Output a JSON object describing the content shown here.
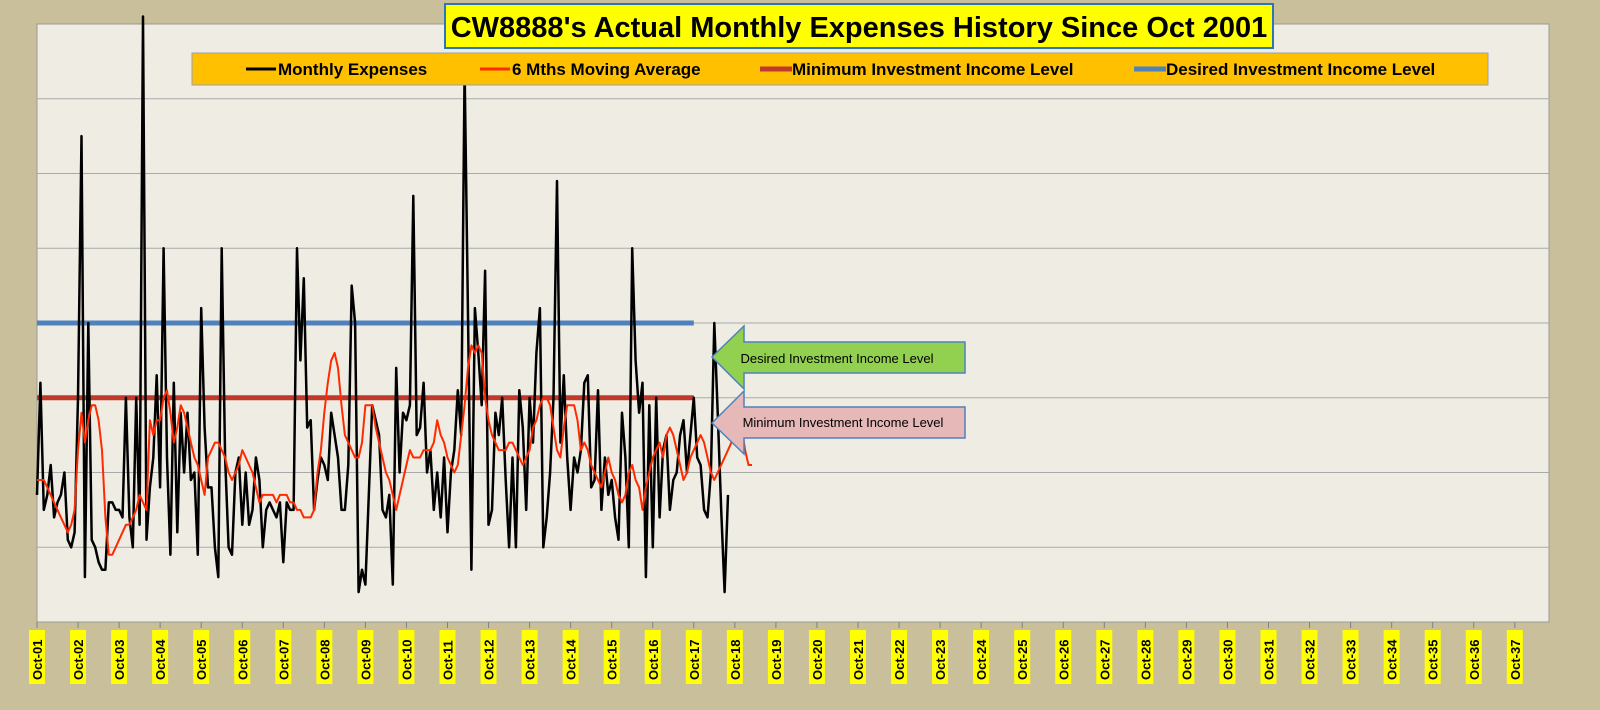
{
  "chart_data": {
    "type": "line",
    "title": "CW8888's Actual Monthly Expenses History Since Oct 2001",
    "xlabel": "",
    "ylabel": "",
    "ylim": [
      0,
      8
    ],
    "grid": true,
    "legend_position": "top",
    "x_tick_labels": [
      "Oct-01",
      "Oct-02",
      "Oct-03",
      "Oct-04",
      "Oct-05",
      "Oct-06",
      "Oct-07",
      "Oct-08",
      "Oct-09",
      "Oct-10",
      "Oct-11",
      "Oct-12",
      "Oct-13",
      "Oct-14",
      "Oct-15",
      "Oct-16",
      "Oct-17",
      "Oct-18",
      "Oct-19",
      "Oct-20",
      "Oct-21",
      "Oct-22",
      "Oct-23",
      "Oct-24",
      "Oct-25",
      "Oct-26",
      "Oct-27",
      "Oct-28",
      "Oct-29",
      "Oct-30",
      "Oct-31",
      "Oct-32",
      "Oct-33",
      "Oct-34",
      "Oct-35",
      "Oct-36",
      "Oct-37"
    ],
    "series": [
      {
        "name": "Monthly Expenses",
        "color": "#000000",
        "start": "Oct-01",
        "values": [
          1.7,
          3.2,
          1.5,
          1.7,
          2.1,
          1.4,
          1.6,
          1.7,
          2.0,
          1.1,
          1.0,
          1.2,
          3.0,
          6.5,
          0.6,
          4.0,
          1.1,
          1.0,
          0.8,
          0.7,
          0.7,
          1.6,
          1.6,
          1.5,
          1.5,
          1.4,
          3.0,
          1.4,
          1.0,
          3.0,
          1.3,
          8.1,
          1.1,
          1.8,
          2.2,
          3.3,
          1.8,
          5.0,
          2.2,
          0.9,
          3.2,
          1.2,
          2.8,
          2.0,
          2.8,
          1.9,
          2.0,
          0.9,
          4.2,
          2.6,
          1.8,
          1.8,
          1.0,
          0.6,
          5.0,
          2.2,
          1.0,
          0.9,
          2.0,
          2.2,
          1.3,
          2.0,
          1.3,
          1.5,
          2.2,
          1.9,
          1.0,
          1.5,
          1.6,
          1.5,
          1.4,
          1.6,
          0.8,
          1.6,
          1.5,
          1.5,
          5.0,
          3.5,
          4.6,
          2.6,
          2.7,
          1.5,
          1.9,
          2.2,
          2.1,
          1.9,
          2.8,
          2.5,
          2.2,
          1.5,
          1.5,
          2.1,
          4.5,
          4.0,
          0.4,
          0.7,
          0.5,
          1.7,
          2.9,
          2.7,
          2.5,
          1.5,
          1.4,
          1.7,
          0.5,
          3.4,
          2.0,
          2.8,
          2.7,
          2.9,
          5.7,
          2.5,
          2.6,
          3.2,
          2.0,
          2.3,
          1.5,
          2.0,
          1.4,
          2.2,
          1.2,
          2.0,
          2.3,
          3.1,
          2.5,
          7.4,
          4.1,
          0.7,
          4.2,
          3.6,
          2.9,
          4.7,
          1.3,
          1.5,
          2.8,
          2.5,
          3.0,
          1.9,
          1.0,
          2.2,
          1.0,
          3.1,
          2.6,
          1.5,
          3.0,
          2.4,
          3.6,
          4.2,
          1.0,
          1.4,
          2.0,
          3.0,
          5.9,
          2.4,
          3.3,
          2.2,
          1.5,
          2.2,
          2.0,
          2.3,
          3.2,
          3.3,
          1.8,
          1.9,
          3.1,
          1.5,
          2.2,
          1.7,
          1.9,
          1.4,
          1.1,
          2.8,
          2.2,
          1.0,
          5.0,
          3.5,
          2.8,
          3.2,
          0.6,
          2.9,
          1.0,
          3.0,
          1.4,
          2.3,
          2.5,
          1.5,
          1.9,
          2.0,
          2.5,
          2.7,
          2.0,
          2.5,
          3.0,
          2.2,
          2.1,
          1.5,
          1.4,
          2.0,
          4.0,
          2.8,
          1.5,
          0.4,
          1.7
        ]
      },
      {
        "name": "6 Mths Moving Average",
        "color": "#ff2a00",
        "start": "Oct-01",
        "values": [
          1.9,
          1.9,
          1.9,
          1.8,
          1.7,
          1.6,
          1.5,
          1.4,
          1.3,
          1.2,
          1.3,
          1.5,
          2.3,
          2.8,
          2.4,
          2.7,
          2.9,
          2.9,
          2.7,
          2.3,
          1.4,
          0.9,
          0.9,
          1.0,
          1.1,
          1.2,
          1.3,
          1.3,
          1.4,
          1.5,
          1.7,
          1.6,
          1.5,
          2.7,
          2.5,
          2.7,
          2.7,
          3.0,
          3.1,
          2.8,
          2.4,
          2.6,
          2.9,
          2.8,
          2.6,
          2.4,
          2.2,
          2.1,
          1.9,
          1.7,
          2.2,
          2.3,
          2.4,
          2.4,
          2.3,
          2.2,
          2.0,
          1.9,
          2.0,
          2.1,
          2.3,
          2.2,
          2.1,
          2.0,
          1.8,
          1.6,
          1.7,
          1.7,
          1.7,
          1.7,
          1.6,
          1.7,
          1.7,
          1.7,
          1.6,
          1.6,
          1.5,
          1.5,
          1.4,
          1.4,
          1.4,
          1.5,
          2.0,
          2.3,
          2.8,
          3.2,
          3.5,
          3.6,
          3.4,
          2.9,
          2.5,
          2.4,
          2.3,
          2.2,
          2.2,
          2.4,
          2.9,
          2.9,
          2.9,
          2.6,
          2.4,
          2.2,
          2.0,
          1.9,
          1.7,
          1.5,
          1.7,
          1.9,
          2.1,
          2.3,
          2.2,
          2.2,
          2.2,
          2.3,
          2.3,
          2.3,
          2.4,
          2.7,
          2.5,
          2.4,
          2.2,
          2.1,
          2.0,
          2.1,
          2.5,
          2.9,
          3.4,
          3.7,
          3.6,
          3.7,
          3.6,
          3.0,
          2.7,
          2.5,
          2.4,
          2.3,
          2.3,
          2.3,
          2.4,
          2.4,
          2.3,
          2.2,
          2.1,
          2.2,
          2.3,
          2.6,
          2.7,
          2.9,
          3.0,
          3.0,
          2.9,
          2.6,
          2.3,
          2.2,
          2.6,
          2.9,
          2.9,
          2.9,
          2.7,
          2.3,
          2.4,
          2.3,
          2.1,
          2.0,
          1.9,
          1.8,
          2.0,
          2.2,
          2.0,
          1.9,
          1.7,
          1.6,
          1.7,
          2.0,
          2.1,
          1.9,
          1.8,
          1.5,
          1.8,
          2.0,
          2.2,
          2.3,
          2.4,
          2.2,
          2.5,
          2.6,
          2.5,
          2.3,
          2.1,
          1.9,
          2.0,
          2.2,
          2.3,
          2.4,
          2.5,
          2.4,
          2.2,
          2.0,
          1.9,
          2.0,
          2.1,
          2.2,
          2.3,
          2.4,
          2.6,
          2.7,
          2.6,
          2.3,
          2.1,
          2.1
        ]
      },
      {
        "name": "Minimum Investment Income Level",
        "color": "#c0392b",
        "constant": 3.0,
        "span": [
          "Oct-01",
          "Oct-17"
        ]
      },
      {
        "name": "Desired Investment Income Level",
        "color": "#4f81bd",
        "constant": 4.0,
        "span": [
          "Oct-01",
          "Oct-17"
        ]
      }
    ],
    "annotations": [
      {
        "text": "Desired Investment Income Level",
        "style": "left-arrow",
        "fill": "#92d050",
        "border": "#4f81bd",
        "points_to": "Desired Investment Income Level"
      },
      {
        "text": "Minimum Investment Income Level",
        "style": "left-arrow",
        "fill": "#e6b8b7",
        "border": "#4f81bd",
        "points_to": "Minimum Investment Income Level"
      }
    ]
  }
}
